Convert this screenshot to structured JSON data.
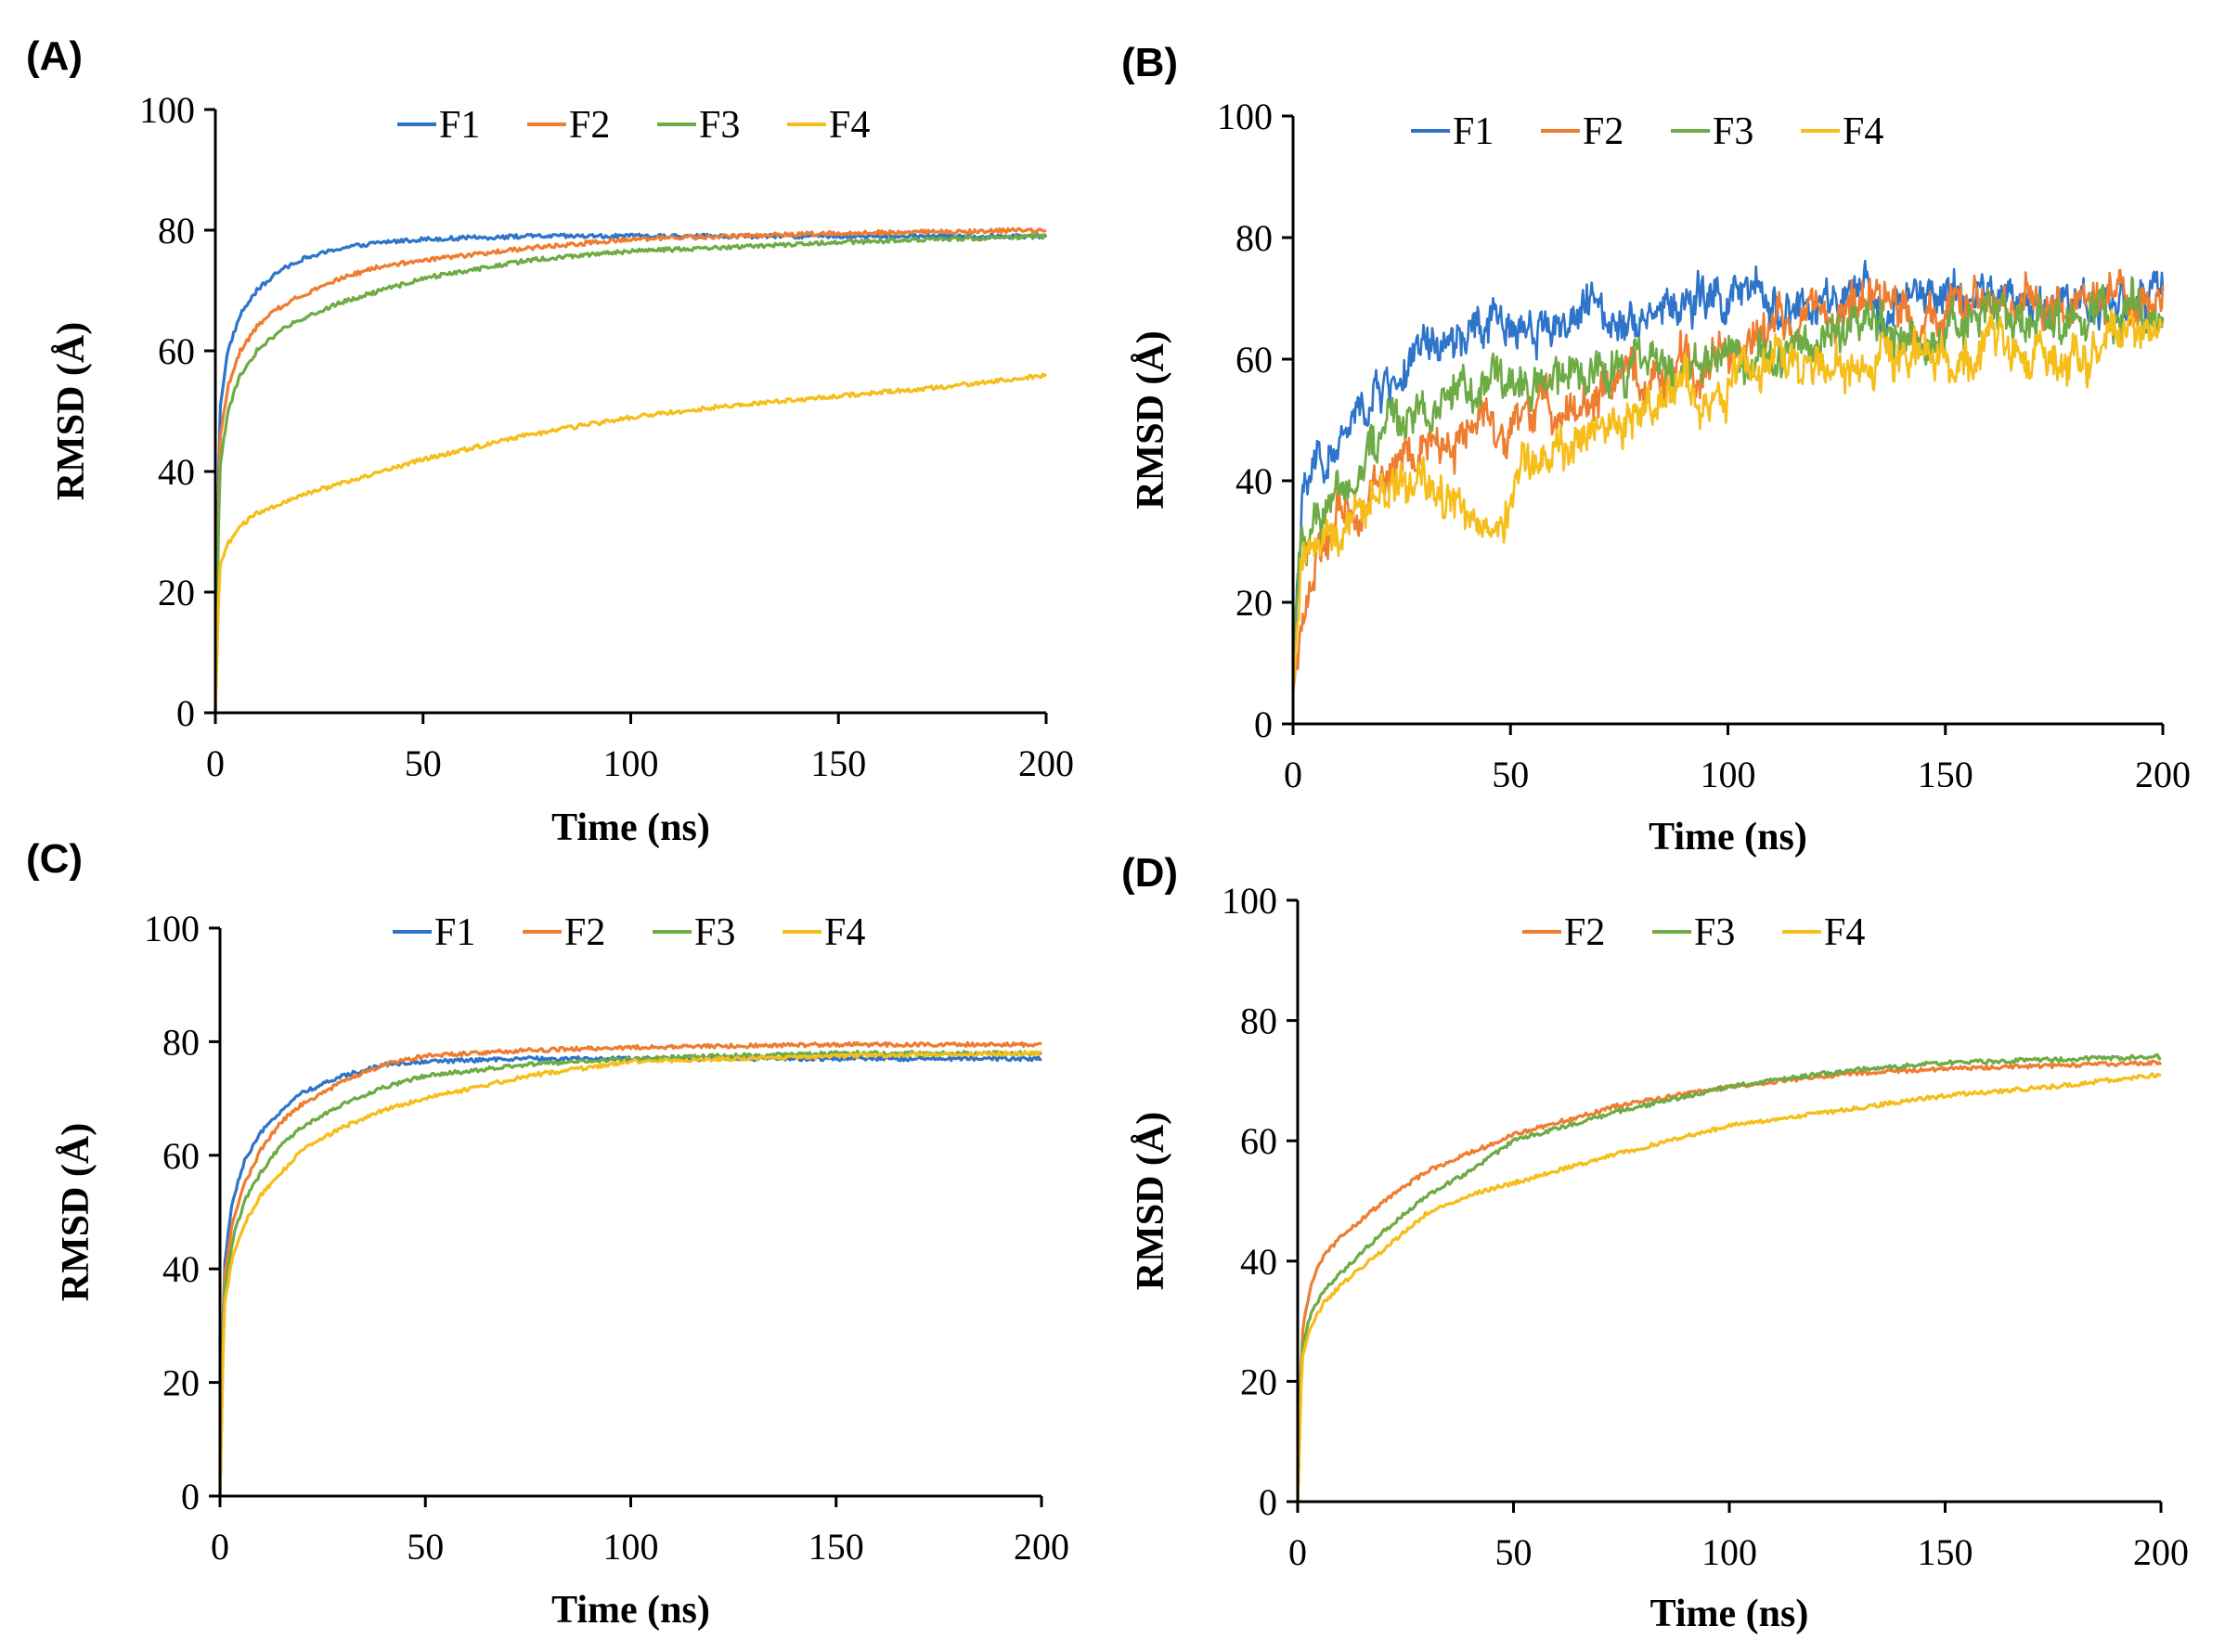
{
  "figure": {
    "colors": {
      "F1": "#2E74C9",
      "F2": "#EE7D31",
      "F3": "#6DAB45",
      "F4": "#F6BE1A"
    }
  },
  "chart_data": [
    {
      "type": "line",
      "panel_label": "(A)",
      "title": "",
      "xlabel": "Time (ns)",
      "ylabel": "RMSD (Å)",
      "xlim": [
        0,
        200
      ],
      "ylim": [
        0,
        100
      ],
      "xticks": [
        "0",
        "50",
        "100",
        "150",
        "200"
      ],
      "yticks": [
        "0",
        "20",
        "40",
        "60",
        "80",
        "100"
      ],
      "legend": {
        "position": "top-center",
        "entries": [
          "F1",
          "F2",
          "F3",
          "F4"
        ]
      },
      "noise": "low",
      "series": [
        {
          "name": "F1",
          "x": [
            0,
            1,
            3,
            6,
            10,
            15,
            20,
            30,
            40,
            50,
            75,
            100,
            150,
            200
          ],
          "y": [
            0,
            50,
            60,
            66,
            70,
            73,
            75,
            77,
            78,
            78.5,
            79,
            79,
            79,
            79
          ]
        },
        {
          "name": "F2",
          "x": [
            0,
            1,
            3,
            6,
            10,
            15,
            20,
            30,
            40,
            50,
            75,
            100,
            150,
            200
          ],
          "y": [
            0,
            45,
            54,
            60,
            64,
            67,
            69,
            72,
            74,
            75,
            77,
            78.5,
            79.5,
            80
          ]
        },
        {
          "name": "F3",
          "x": [
            0,
            1,
            3,
            6,
            10,
            15,
            20,
            30,
            40,
            50,
            75,
            100,
            150,
            200
          ],
          "y": [
            0,
            40,
            50,
            56,
            60,
            63,
            65,
            68,
            70,
            72,
            75,
            76.5,
            78,
            79
          ]
        },
        {
          "name": "F4",
          "x": [
            0,
            1,
            3,
            6,
            10,
            20,
            30,
            40,
            50,
            75,
            100,
            125,
            150,
            175,
            200
          ],
          "y": [
            0,
            24,
            28,
            31,
            33,
            36,
            38,
            40,
            42,
            46,
            49,
            51,
            52.5,
            54,
            56
          ]
        }
      ]
    },
    {
      "type": "line",
      "panel_label": "(B)",
      "title": "",
      "xlabel": "Time (ns)",
      "ylabel": "RMSD (Å)",
      "xlim": [
        0,
        200
      ],
      "ylim": [
        0,
        100
      ],
      "xticks": [
        "0",
        "50",
        "100",
        "150",
        "200"
      ],
      "yticks": [
        "0",
        "20",
        "40",
        "60",
        "80",
        "100"
      ],
      "legend": {
        "position": "top-center",
        "entries": [
          "F1",
          "F2",
          "F3",
          "F4"
        ]
      },
      "noise": "high",
      "series": [
        {
          "name": "F1",
          "x": [
            0,
            2,
            5,
            10,
            20,
            30,
            40,
            50,
            60,
            70,
            80,
            90,
            100,
            110,
            120,
            130,
            140,
            150,
            160,
            170,
            180,
            190,
            200
          ],
          "y": [
            10,
            35,
            42,
            45,
            55,
            60,
            63,
            66,
            66,
            68,
            68,
            69,
            70,
            69,
            68,
            69,
            69,
            70,
            70,
            69,
            70,
            70,
            70
          ]
        },
        {
          "name": "F2",
          "x": [
            0,
            2,
            5,
            10,
            20,
            30,
            40,
            50,
            60,
            70,
            80,
            90,
            100,
            110,
            120,
            130,
            140,
            150,
            160,
            170,
            180,
            190,
            200
          ],
          "y": [
            5,
            18,
            25,
            32,
            40,
            45,
            48,
            50,
            52,
            54,
            56,
            58,
            62,
            65,
            67,
            69,
            68,
            68,
            68,
            69,
            69,
            69,
            68
          ]
        },
        {
          "name": "F3",
          "x": [
            0,
            2,
            5,
            10,
            20,
            30,
            40,
            50,
            60,
            70,
            80,
            90,
            100,
            110,
            120,
            130,
            140,
            150,
            160,
            170,
            180,
            190,
            200
          ],
          "y": [
            12,
            30,
            35,
            38,
            48,
            53,
            55,
            56,
            56,
            57,
            58,
            59,
            60,
            62,
            63,
            64,
            65,
            66,
            66,
            67,
            67,
            67,
            66
          ]
        },
        {
          "name": "F4",
          "x": [
            0,
            2,
            5,
            10,
            20,
            30,
            40,
            45,
            50,
            60,
            70,
            80,
            90,
            100,
            105,
            110,
            120,
            130,
            140,
            150,
            160,
            170,
            180,
            190,
            200
          ],
          "y": [
            5,
            25,
            30,
            35,
            37,
            38,
            35,
            31,
            38,
            43,
            48,
            52,
            54,
            55,
            59,
            60,
            58,
            58,
            60,
            62,
            62,
            62,
            61,
            62,
            64
          ]
        }
      ]
    },
    {
      "type": "line",
      "panel_label": "(C)",
      "title": "",
      "xlabel": "Time (ns)",
      "ylabel": "RMSD (Å)",
      "xlim": [
        0,
        200
      ],
      "ylim": [
        0,
        100
      ],
      "xticks": [
        "0",
        "50",
        "100",
        "150",
        "200"
      ],
      "yticks": [
        "0",
        "20",
        "40",
        "60",
        "80",
        "100"
      ],
      "legend": {
        "position": "top-center",
        "entries": [
          "F1",
          "F2",
          "F3",
          "F4"
        ]
      },
      "noise": "low",
      "series": [
        {
          "name": "F1",
          "x": [
            0,
            1,
            3,
            6,
            10,
            15,
            20,
            30,
            40,
            50,
            75,
            100,
            150,
            200
          ],
          "y": [
            0,
            40,
            52,
            59,
            64,
            68,
            71,
            74,
            76,
            76.5,
            77,
            77,
            77,
            77
          ]
        },
        {
          "name": "F2",
          "x": [
            0,
            1,
            3,
            6,
            10,
            15,
            20,
            30,
            40,
            50,
            75,
            100,
            150,
            200
          ],
          "y": [
            0,
            38,
            48,
            55,
            61,
            66,
            69,
            73,
            76,
            77.5,
            78.5,
            79,
            79.5,
            79.5
          ]
        },
        {
          "name": "F3",
          "x": [
            0,
            1,
            3,
            6,
            10,
            15,
            20,
            30,
            40,
            50,
            75,
            100,
            150,
            200
          ],
          "y": [
            0,
            35,
            45,
            52,
            57,
            62,
            65,
            69,
            72,
            74,
            76,
            77,
            78,
            78
          ]
        },
        {
          "name": "F4",
          "x": [
            0,
            1,
            3,
            6,
            10,
            15,
            20,
            30,
            40,
            50,
            75,
            100,
            150,
            200
          ],
          "y": [
            0,
            33,
            42,
            48,
            53,
            57,
            61,
            65,
            68,
            70,
            74,
            76.5,
            77.5,
            78
          ]
        }
      ]
    },
    {
      "type": "line",
      "panel_label": "(D)",
      "title": "",
      "xlabel": "Time (ns)",
      "ylabel": "RMSD (Å)",
      "xlim": [
        0,
        200
      ],
      "ylim": [
        0,
        100
      ],
      "xticks": [
        "0",
        "50",
        "100",
        "150",
        "200"
      ],
      "yticks": [
        "0",
        "20",
        "40",
        "60",
        "80",
        "100"
      ],
      "legend": {
        "position": "top-center",
        "entries": [
          "F2",
          "F3",
          "F4"
        ]
      },
      "noise": "low",
      "series": [
        {
          "name": "F2",
          "x": [
            0,
            1,
            3,
            6,
            10,
            20,
            30,
            40,
            50,
            75,
            100,
            125,
            150,
            175,
            200
          ],
          "y": [
            0,
            28,
            36,
            41,
            44,
            50,
            55,
            58,
            61,
            66,
            69,
            71,
            72,
            72.5,
            73
          ]
        },
        {
          "name": "F3",
          "x": [
            0,
            1,
            3,
            6,
            10,
            20,
            30,
            40,
            50,
            75,
            100,
            125,
            150,
            175,
            200
          ],
          "y": [
            0,
            26,
            31,
            35,
            38,
            45,
            51,
            55,
            60,
            65,
            69,
            71.5,
            73,
            73.5,
            74
          ]
        },
        {
          "name": "F4",
          "x": [
            0,
            1,
            3,
            6,
            10,
            20,
            30,
            40,
            50,
            75,
            100,
            125,
            150,
            175,
            200
          ],
          "y": [
            0,
            24,
            29,
            33,
            36,
            42,
            48,
            51,
            53,
            58,
            62.5,
            65,
            67.5,
            69,
            71
          ]
        }
      ]
    }
  ]
}
